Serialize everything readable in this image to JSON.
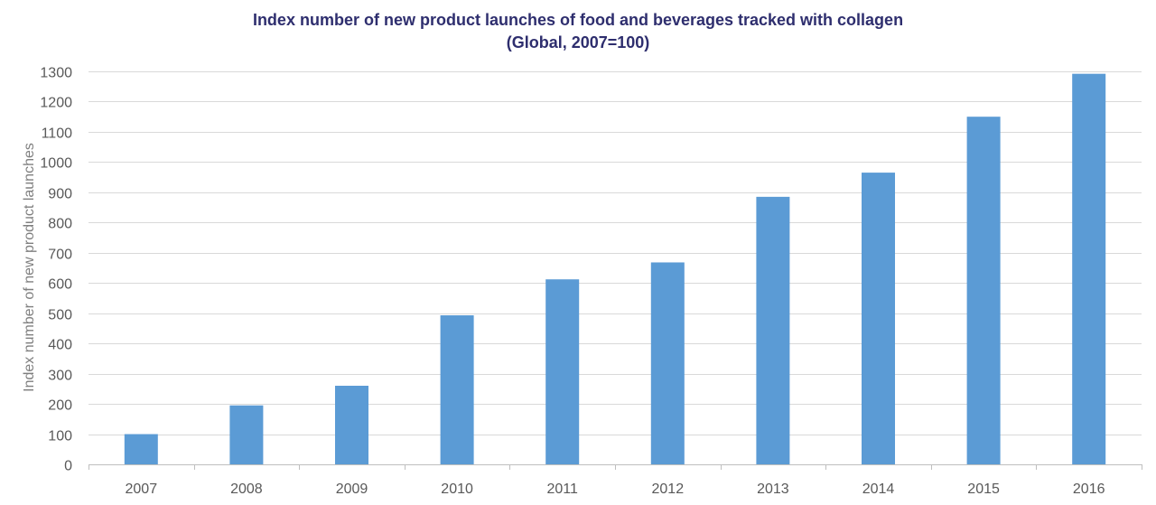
{
  "chart_data": {
    "type": "bar",
    "title": "Index number of new product launches of food and beverages tracked with collagen",
    "subtitle": "(Global, 2007=100)",
    "xlabel": "",
    "ylabel": "Index number of new product launches",
    "categories": [
      "2007",
      "2008",
      "2009",
      "2010",
      "2011",
      "2012",
      "2013",
      "2014",
      "2015",
      "2016"
    ],
    "values": [
      100,
      195,
      260,
      493,
      612,
      668,
      885,
      965,
      1150,
      1292
    ],
    "ylim": [
      0,
      1300
    ],
    "yticks": [
      0,
      100,
      200,
      300,
      400,
      500,
      600,
      700,
      800,
      900,
      1000,
      1100,
      1200,
      1300
    ],
    "grid": true,
    "bar_color": "#5b9bd5",
    "grid_color": "#d9d9d9",
    "axis_color": "#bfbfbf"
  }
}
